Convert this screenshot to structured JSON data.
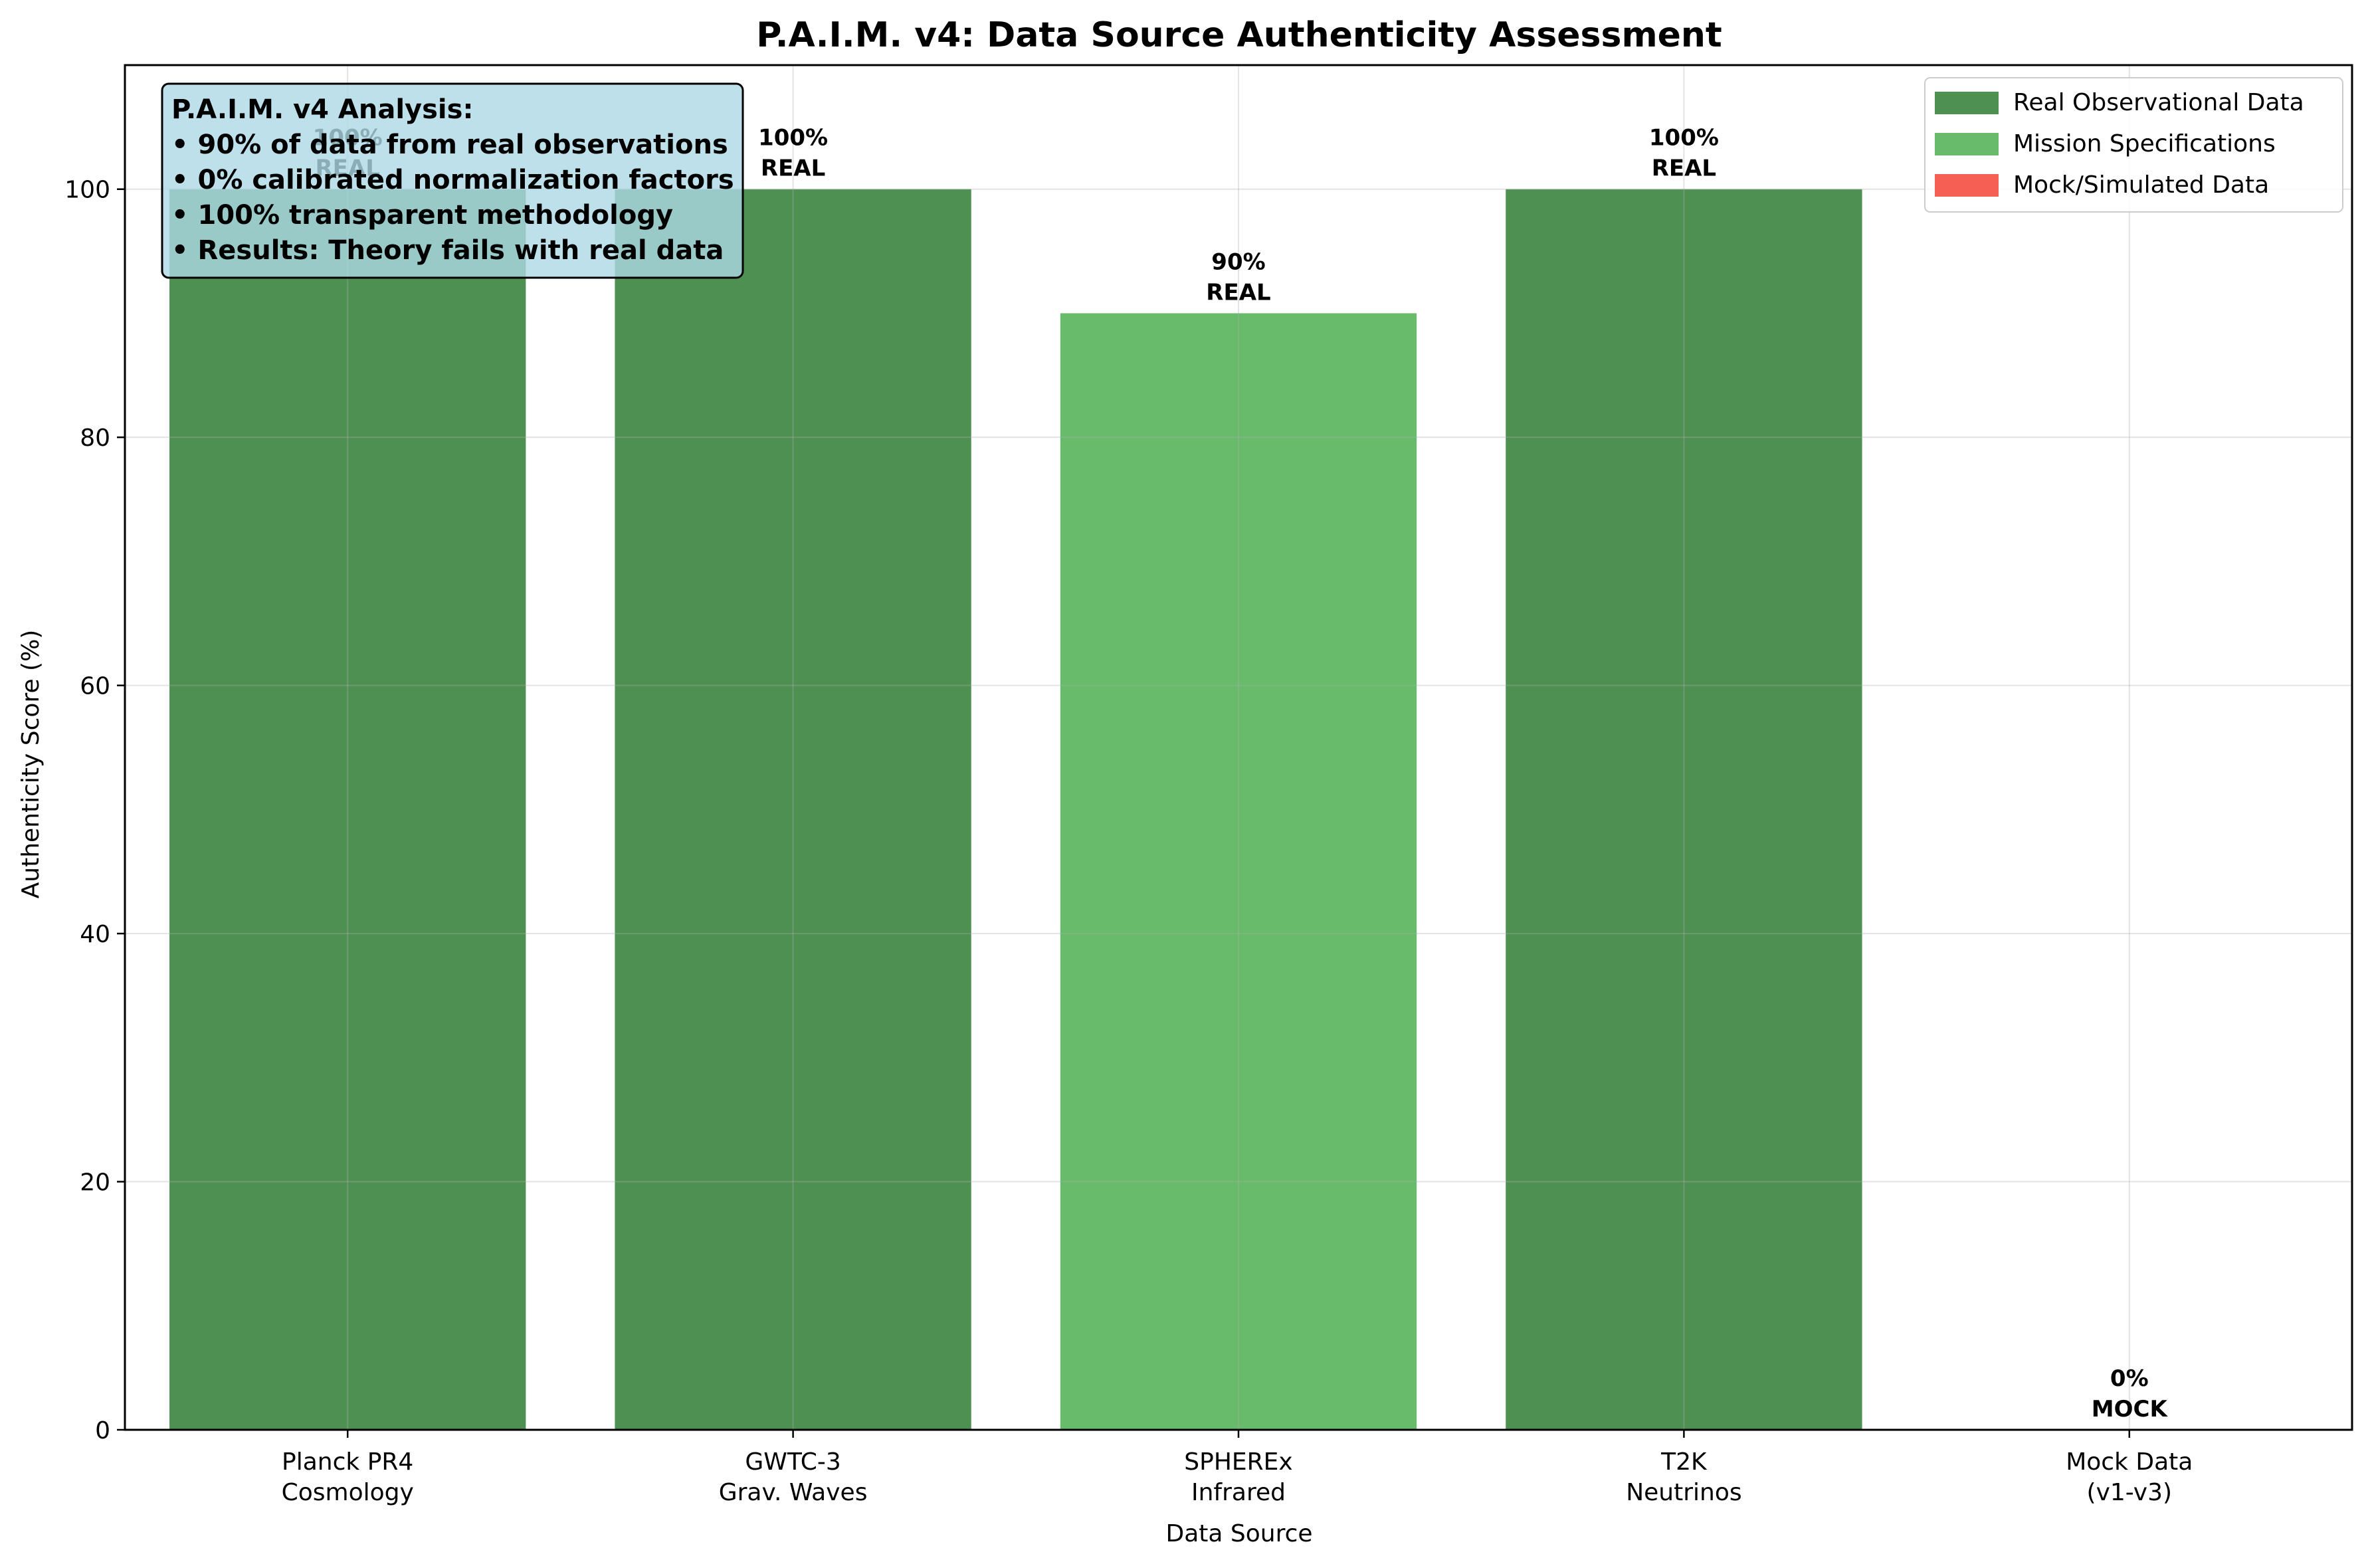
{
  "chart_data": {
    "type": "bar",
    "title": "P.A.I.M. v4: Data Source Authenticity Assessment",
    "xlabel": "Data Source",
    "ylabel": "Authenticity Score (%)",
    "ylim": [
      0,
      110
    ],
    "yticks": [
      "0",
      "20",
      "40",
      "60",
      "80",
      "100"
    ],
    "grid": true,
    "categories": [
      [
        "Planck PR4",
        "Cosmology"
      ],
      [
        "GWTC-3",
        "Grav. Waves"
      ],
      [
        "SPHEREx",
        "Infrared"
      ],
      [
        "T2K",
        "Neutrinos"
      ],
      [
        "Mock Data",
        "(v1-v3)"
      ]
    ],
    "values": [
      100,
      100,
      90,
      100,
      0
    ],
    "data_labels": [
      [
        "100%",
        "REAL"
      ],
      [
        "100%",
        "REAL"
      ],
      [
        "90%",
        "REAL"
      ],
      [
        "100%",
        "REAL"
      ],
      [
        "0%",
        "MOCK"
      ]
    ],
    "bar_types": [
      "Real Observational Data",
      "Real Observational Data",
      "Mission Specifications",
      "Real Observational Data",
      "Mock/Simulated Data"
    ],
    "legend": {
      "placement": "top-right",
      "entries": [
        {
          "label": "Real Observational Data",
          "color": "#2e7d32"
        },
        {
          "label": "Mission Specifications",
          "color": "#4caf50"
        },
        {
          "label": "Mock/Simulated Data",
          "color": "#f44336"
        }
      ]
    },
    "annotation": {
      "lines": [
        "P.A.I.M. v4 Analysis:",
        "• 90% of data from real observations",
        "• 0% calibrated normalization factors",
        "• 100% transparent methodology",
        "• Results: Theory fails with real data"
      ],
      "background": "#add8e6"
    }
  }
}
